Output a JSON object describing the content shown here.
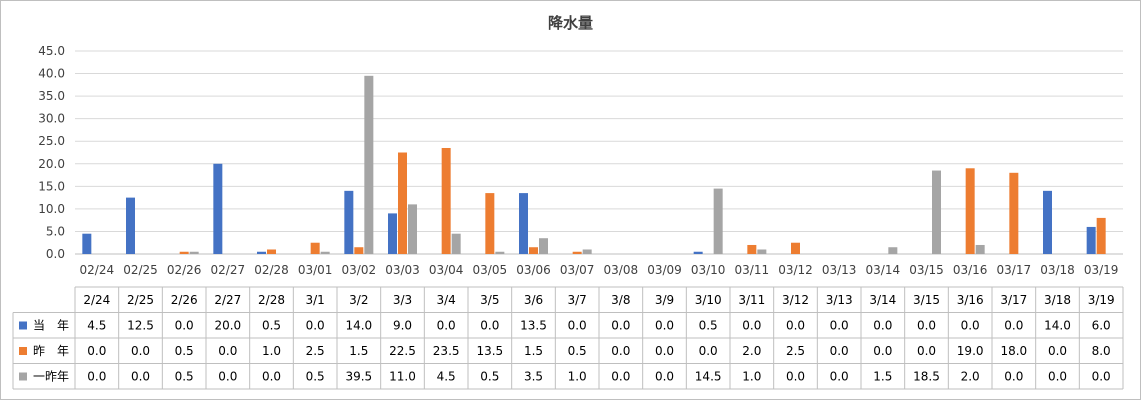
{
  "chart_data": {
    "type": "bar",
    "title": "降水量",
    "xlabel": "",
    "ylabel": "",
    "ylim": [
      0,
      45
    ],
    "yticks": [
      "0.0",
      "5.0",
      "10.0",
      "15.0",
      "20.0",
      "25.0",
      "30.0",
      "35.0",
      "40.0",
      "45.0"
    ],
    "grid": true,
    "categories": [
      "02/24",
      "02/25",
      "02/26",
      "02/27",
      "02/28",
      "03/01",
      "03/02",
      "03/03",
      "03/04",
      "03/05",
      "03/06",
      "03/07",
      "03/08",
      "03/09",
      "03/10",
      "03/11",
      "03/12",
      "03/13",
      "03/14",
      "03/15",
      "03/16",
      "03/17",
      "03/18",
      "03/19"
    ],
    "table_header": [
      "2/24",
      "2/25",
      "2/26",
      "2/27",
      "2/28",
      "3/1",
      "3/2",
      "3/3",
      "3/4",
      "3/5",
      "3/6",
      "3/7",
      "3/8",
      "3/9",
      "3/10",
      "3/11",
      "3/12",
      "3/13",
      "3/14",
      "3/15",
      "3/16",
      "3/17",
      "3/18",
      "3/19"
    ],
    "series": [
      {
        "name": "当　年",
        "color": "#4472c4",
        "values": [
          4.5,
          12.5,
          0.0,
          20.0,
          0.5,
          0.0,
          14.0,
          9.0,
          0.0,
          0.0,
          13.5,
          0.0,
          0.0,
          0.0,
          0.5,
          0.0,
          0.0,
          0.0,
          0.0,
          0.0,
          0.0,
          0.0,
          14.0,
          6.0
        ]
      },
      {
        "name": "昨　年",
        "color": "#ed7d31",
        "values": [
          0.0,
          0.0,
          0.5,
          0.0,
          1.0,
          2.5,
          1.5,
          22.5,
          23.5,
          13.5,
          1.5,
          0.5,
          0.0,
          0.0,
          0.0,
          2.0,
          2.5,
          0.0,
          0.0,
          0.0,
          19.0,
          18.0,
          0.0,
          8.0
        ]
      },
      {
        "name": "一昨年",
        "color": "#a5a5a5",
        "values": [
          0.0,
          0.0,
          0.5,
          0.0,
          0.0,
          0.5,
          39.5,
          11.0,
          4.5,
          0.5,
          3.5,
          1.0,
          0.0,
          0.0,
          14.5,
          1.0,
          0.0,
          0.0,
          1.5,
          18.5,
          2.0,
          0.0,
          0.0,
          0.0
        ]
      }
    ]
  }
}
